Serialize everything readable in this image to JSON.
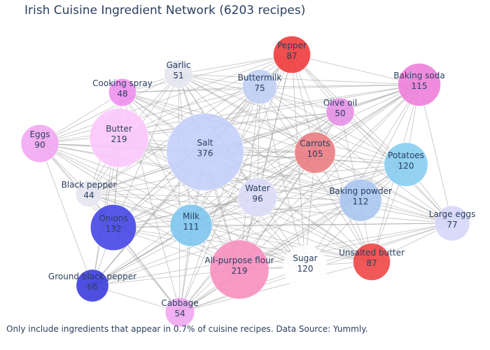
{
  "chart_data": {
    "type": "network",
    "title": "Irish Cuisine Ingredient Network (6203 recipes)",
    "footnote": "Only include ingredients that appear in 0.7% of cuisine recipes. Data Source: Yummly.",
    "nodes": [
      {
        "name": "Salt",
        "count": 376,
        "color": "#c5d0fb"
      },
      {
        "name": "Butter",
        "count": 219,
        "color": "#fcc8fc"
      },
      {
        "name": "All-purpose flour",
        "count": 219,
        "color": "#f78fc0"
      },
      {
        "name": "Onions",
        "count": 132,
        "color": "#4646e6"
      },
      {
        "name": "Sugar",
        "count": 120,
        "color": "#ffffff"
      },
      {
        "name": "Potatoes",
        "count": 120,
        "color": "#87cdf0"
      },
      {
        "name": "Baking soda",
        "count": 115,
        "color": "#ee7fd9"
      },
      {
        "name": "Baking powder",
        "count": 112,
        "color": "#a9c5f0"
      },
      {
        "name": "Milk",
        "count": 111,
        "color": "#7fc7ef"
      },
      {
        "name": "Carrots",
        "count": 105,
        "color": "#eb7d83"
      },
      {
        "name": "Water",
        "count": 96,
        "color": "#dcdcf8"
      },
      {
        "name": "Eggs",
        "count": 90,
        "color": "#f2a7f2"
      },
      {
        "name": "Pepper",
        "count": 87,
        "color": "#f03c3c"
      },
      {
        "name": "Unsalted butter",
        "count": 87,
        "color": "#f04646"
      },
      {
        "name": "Large eggs",
        "count": 77,
        "color": "#d6d6f8"
      },
      {
        "name": "Buttermilk",
        "count": 75,
        "color": "#c0cff5"
      },
      {
        "name": "Ground black pepper",
        "count": 66,
        "color": "#3c3cdc"
      },
      {
        "name": "Cabbage",
        "count": 54,
        "color": "#f0a7f0"
      },
      {
        "name": "Garlic",
        "count": 51,
        "color": "#e6e6f0"
      },
      {
        "name": "Olive oil",
        "count": 50,
        "color": "#e591e5"
      },
      {
        "name": "Cooking spray",
        "count": 48,
        "color": "#ef8fef"
      },
      {
        "name": "Black pepper",
        "count": 44,
        "color": "#e6e6f0"
      }
    ],
    "edge_color": "#a0a0a0"
  }
}
